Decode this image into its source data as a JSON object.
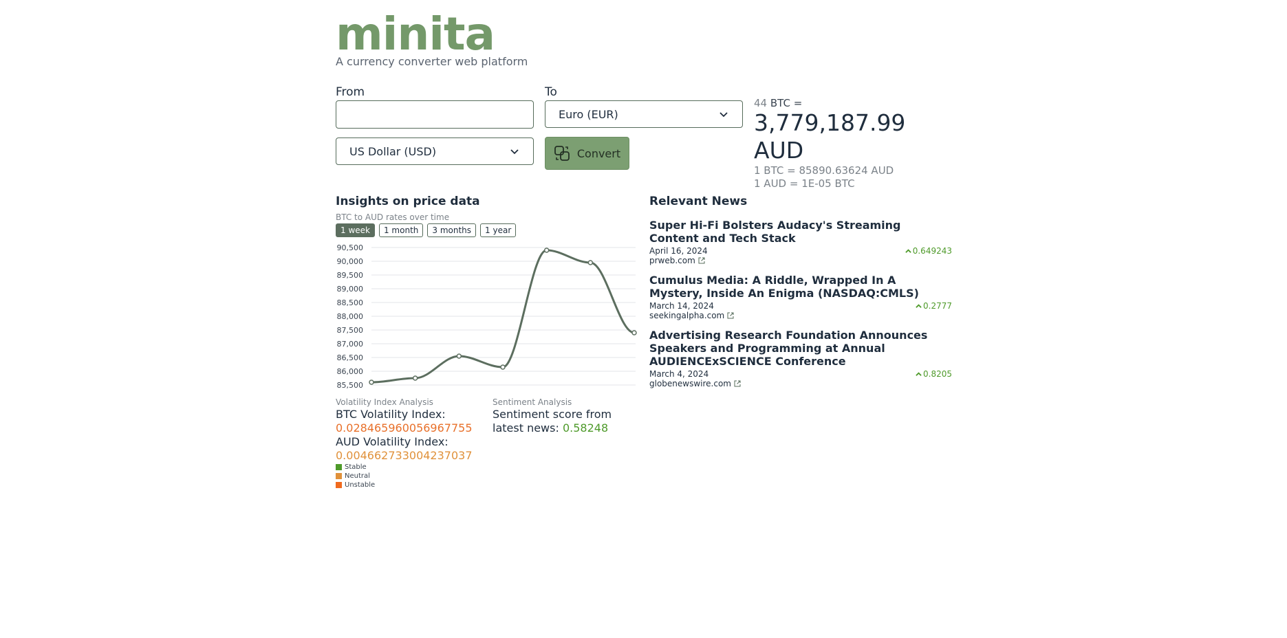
{
  "brand": {
    "logo": "minita",
    "tagline": "A currency converter web platform"
  },
  "converter": {
    "from_label": "From",
    "to_label": "To",
    "amount_value": "",
    "from_currency": "US Dollar (USD)",
    "to_currency": "Euro (EUR)",
    "convert_label": "Convert"
  },
  "result": {
    "amount": "44",
    "amount_unit": "BTC =",
    "converted": "3,779,187.99 AUD",
    "rate_forward": "1 BTC = 85890.63624 AUD",
    "rate_inverse": "1 AUD = 1E-05 BTC"
  },
  "insights": {
    "title": "Insights on price data",
    "subtitle": "BTC to AUD rates over time",
    "periods": [
      "1 week",
      "1 month",
      "3 months",
      "1 year"
    ],
    "active_period": "1 week"
  },
  "chart_data": {
    "type": "line",
    "x": [
      1,
      2,
      3,
      4,
      5,
      6,
      7
    ],
    "values": [
      85600,
      85750,
      86550,
      86150,
      90400,
      89950,
      87400
    ],
    "yticks": [
      90500,
      90000,
      89500,
      89000,
      88500,
      88000,
      87500,
      87000,
      86500,
      86000,
      85500
    ],
    "ytick_labels": [
      "90,500",
      "90,000",
      "89,500",
      "89,000",
      "88,500",
      "88,000",
      "87,500",
      "87,000",
      "86,500",
      "86,000",
      "85,500"
    ],
    "ylim": [
      85500,
      90500
    ],
    "grid": true,
    "line_color": "#5c6e5f"
  },
  "volatility": {
    "title": "Volatility Index Analysis",
    "btc_label": "BTC Volatility Index:",
    "btc_value": "0.028465960056967755",
    "aud_label": "AUD Volatility Index:",
    "aud_value": "0.004662733004237037",
    "legend": [
      {
        "label": "Stable",
        "color": "#4e9a2a"
      },
      {
        "label": "Neutral",
        "color": "#e0913a"
      },
      {
        "label": "Unstable",
        "color": "#f06a1e"
      }
    ]
  },
  "sentiment": {
    "title": "Sentiment Analysis",
    "text": "Sentiment score from latest news:",
    "value": "0.58248"
  },
  "news": {
    "title": "Relevant News",
    "items": [
      {
        "title": "Super Hi-Fi Bolsters Audacy's Streaming Content and Tech Stack",
        "date": "April 16, 2024",
        "source": "prweb.com",
        "score": "0.649243"
      },
      {
        "title": "Cumulus Media: A Riddle, Wrapped In A Mystery, Inside An Enigma (NASDAQ:CMLS)",
        "date": "March 14, 2024",
        "source": "seekingalpha.com",
        "score": "0.2777"
      },
      {
        "title": "Advertising Research Foundation Announces Speakers and Programming at Annual AUDIENCExSCIENCE Conference",
        "date": "March 4, 2024",
        "source": "globenewswire.com",
        "score": "0.8205"
      }
    ]
  }
}
